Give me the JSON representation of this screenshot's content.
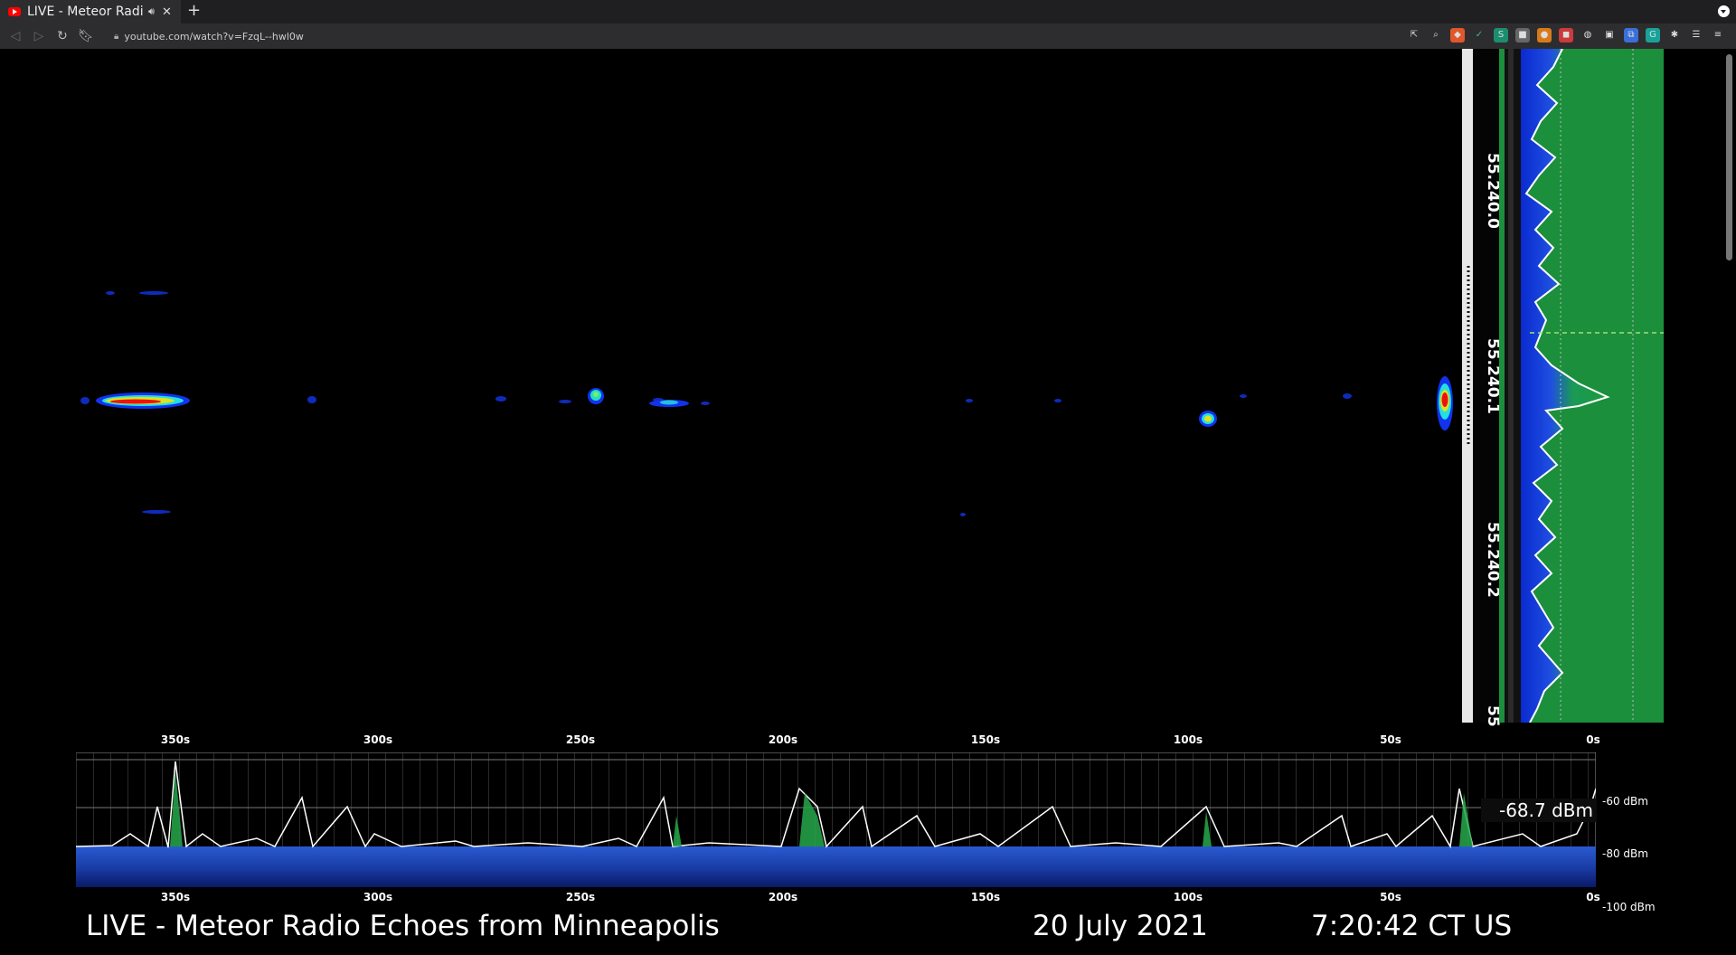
{
  "browser": {
    "tab_title": "LIVE - Meteor Radio Echoes from Minneapolis",
    "tab_title_visible": "LIVE - Meteor Radi",
    "url": "youtube.com/watch?v=FzqL--hwl0w"
  },
  "video": {
    "frequency_labels": [
      "55.240.0",
      "55.240.1",
      "55.240.2",
      "55"
    ],
    "time_ticks_top": [
      "350s",
      "300s",
      "250s",
      "200s",
      "150s",
      "100s",
      "50s",
      "0s"
    ],
    "time_ticks_bottom": [
      "350s",
      "300s",
      "250s",
      "200s",
      "150s",
      "100s",
      "50s",
      "0s"
    ],
    "dbm_labels": [
      "-60 dBm",
      "-80 dBm",
      "-100 dBm"
    ],
    "signal_readout": "-68.7 dBm",
    "caption_title": "LIVE - Meteor Radio Echoes from Minneapolis",
    "caption_date": "20 July 2021",
    "caption_time": "7:20:42 CT US"
  },
  "colors": {
    "waterfall_bg": "#000000",
    "spectrum_fill": "#1a9a3c",
    "timeline_fill": "#1d3f9a",
    "trace": "#ffffff"
  }
}
